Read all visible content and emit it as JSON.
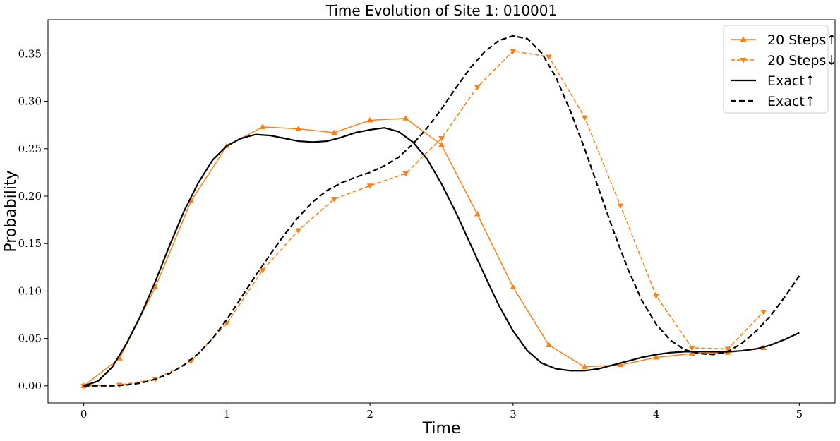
{
  "chart_data": {
    "type": "line",
    "title": "Time Evolution of Site 1: 010001",
    "xlabel": "Time",
    "ylabel": "Probability",
    "xlim": [
      -0.25,
      5.25
    ],
    "ylim": [
      -0.018,
      0.386
    ],
    "xticks": [
      0,
      1,
      2,
      3,
      4,
      5
    ],
    "yticks": [
      0.0,
      0.05,
      0.1,
      0.15,
      0.2,
      0.25,
      0.3,
      0.35
    ],
    "grid": false,
    "legend_position": "top-right",
    "colors": {
      "steps": "#ff7f0e",
      "exact": "#000000"
    },
    "series": [
      {
        "name": "20 Steps↑",
        "style": "solid",
        "marker": "triangle-up",
        "color": "#ff7f0e",
        "x": [
          0,
          0.25,
          0.5,
          0.75,
          1.0,
          1.25,
          1.5,
          1.75,
          2.0,
          2.25,
          2.5,
          2.75,
          3.0,
          3.25,
          3.5,
          3.75,
          4.0,
          4.25,
          4.5,
          4.75
        ],
        "y": [
          0.0,
          0.029,
          0.104,
          0.195,
          0.253,
          0.273,
          0.271,
          0.267,
          0.28,
          0.282,
          0.254,
          0.181,
          0.104,
          0.043,
          0.02,
          0.022,
          0.03,
          0.034,
          0.035,
          0.04
        ]
      },
      {
        "name": "20 Steps↓",
        "style": "dashed",
        "marker": "triangle-down",
        "color": "#ff7f0e",
        "x": [
          0,
          0.25,
          0.5,
          0.75,
          1.0,
          1.25,
          1.5,
          1.75,
          2.0,
          2.25,
          2.5,
          2.75,
          3.0,
          3.25,
          3.5,
          3.75,
          4.0,
          4.25,
          4.5,
          4.75
        ],
        "y": [
          0.0,
          0.001,
          0.007,
          0.026,
          0.066,
          0.122,
          0.164,
          0.197,
          0.211,
          0.224,
          0.261,
          0.315,
          0.353,
          0.347,
          0.283,
          0.19,
          0.095,
          0.04,
          0.039,
          0.078
        ]
      },
      {
        "name": "Exact↑",
        "style": "solid",
        "marker": "none",
        "color": "#000000",
        "x": [
          0,
          0.1,
          0.2,
          0.3,
          0.4,
          0.5,
          0.6,
          0.7,
          0.8,
          0.9,
          1.0,
          1.1,
          1.2,
          1.3,
          1.4,
          1.5,
          1.6,
          1.7,
          1.8,
          1.9,
          2.0,
          2.1,
          2.2,
          2.3,
          2.4,
          2.5,
          2.6,
          2.7,
          2.8,
          2.9,
          3.0,
          3.1,
          3.2,
          3.3,
          3.4,
          3.5,
          3.6,
          3.7,
          3.8,
          3.9,
          4.0,
          4.1,
          4.2,
          4.3,
          4.4,
          4.5,
          4.6,
          4.7,
          4.8,
          4.9,
          5.0
        ],
        "y": [
          0.0,
          0.005,
          0.02,
          0.045,
          0.075,
          0.11,
          0.148,
          0.184,
          0.214,
          0.238,
          0.253,
          0.261,
          0.265,
          0.264,
          0.261,
          0.258,
          0.257,
          0.258,
          0.262,
          0.267,
          0.27,
          0.272,
          0.268,
          0.257,
          0.239,
          0.213,
          0.183,
          0.15,
          0.117,
          0.085,
          0.058,
          0.037,
          0.024,
          0.018,
          0.016,
          0.016,
          0.018,
          0.022,
          0.026,
          0.03,
          0.033,
          0.035,
          0.036,
          0.036,
          0.036,
          0.036,
          0.037,
          0.039,
          0.043,
          0.049,
          0.056
        ]
      },
      {
        "name": "Exact↑",
        "style": "dashed",
        "marker": "none",
        "color": "#000000",
        "x": [
          0,
          0.1,
          0.2,
          0.3,
          0.4,
          0.5,
          0.6,
          0.7,
          0.8,
          0.9,
          1.0,
          1.1,
          1.2,
          1.3,
          1.4,
          1.5,
          1.6,
          1.7,
          1.8,
          1.9,
          2.0,
          2.1,
          2.2,
          2.3,
          2.4,
          2.5,
          2.6,
          2.7,
          2.8,
          2.9,
          3.0,
          3.1,
          3.2,
          3.3,
          3.4,
          3.5,
          3.6,
          3.7,
          3.8,
          3.9,
          4.0,
          4.1,
          4.2,
          4.3,
          4.4,
          4.5,
          4.6,
          4.7,
          4.8,
          4.9,
          5.0
        ],
        "y": [
          0.0,
          0.0,
          0.0,
          0.001,
          0.003,
          0.007,
          0.013,
          0.022,
          0.034,
          0.05,
          0.07,
          0.093,
          0.116,
          0.138,
          0.159,
          0.178,
          0.194,
          0.206,
          0.214,
          0.22,
          0.225,
          0.232,
          0.241,
          0.255,
          0.272,
          0.292,
          0.314,
          0.335,
          0.352,
          0.364,
          0.369,
          0.366,
          0.351,
          0.325,
          0.29,
          0.25,
          0.207,
          0.164,
          0.124,
          0.09,
          0.065,
          0.048,
          0.038,
          0.034,
          0.033,
          0.036,
          0.045,
          0.058,
          0.074,
          0.094,
          0.116
        ]
      }
    ]
  }
}
